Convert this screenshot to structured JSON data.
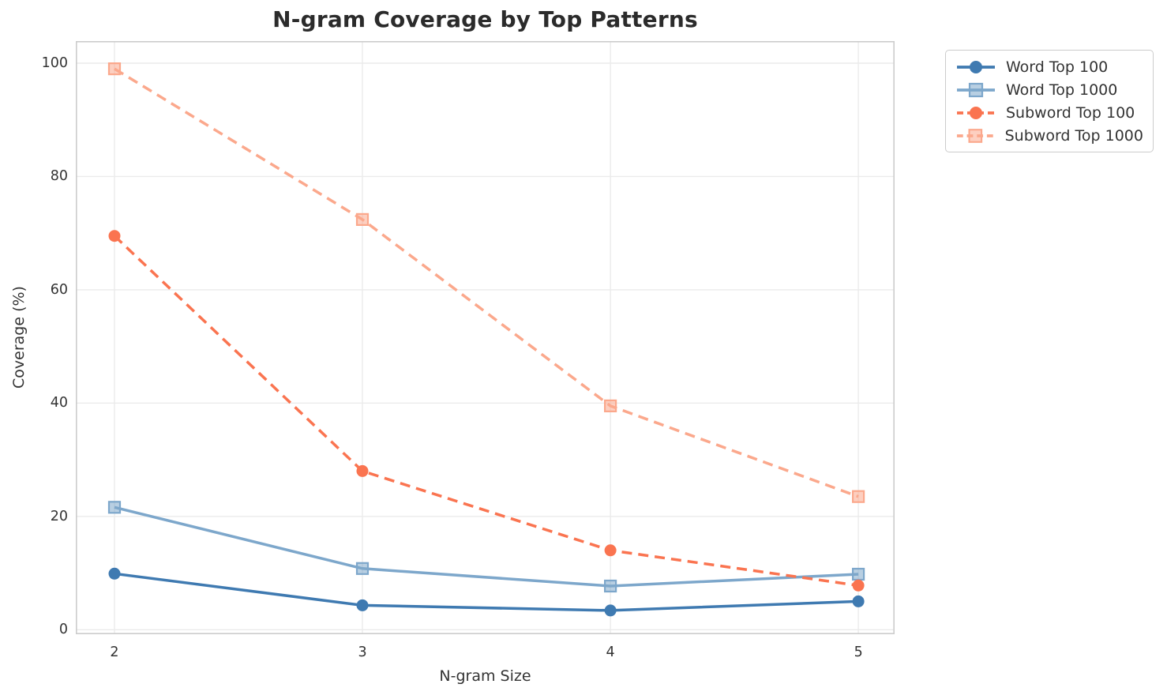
{
  "chart_data": {
    "type": "line",
    "title": "N-gram Coverage by Top Patterns",
    "xlabel": "N-gram Size",
    "ylabel": "Coverage (%)",
    "x": [
      2,
      3,
      4,
      5
    ],
    "x_ticks": [
      2,
      3,
      4,
      5
    ],
    "y_ticks": [
      0,
      20,
      40,
      60,
      80,
      100
    ],
    "xlim": [
      1.844,
      5.146
    ],
    "ylim": [
      -0.8,
      103.9
    ],
    "grid": true,
    "legend_position": "upper right, outside plot",
    "series": [
      {
        "id": "word-top-100",
        "name": "Word Top 100",
        "color": "#3f7ab1",
        "linestyle": "solid",
        "marker": "circle",
        "values": [
          9.9,
          4.3,
          3.4,
          5.0
        ]
      },
      {
        "id": "word-top-1000",
        "name": "Word Top 1000",
        "color": "#7da7cb",
        "linestyle": "solid",
        "marker": "square",
        "values": [
          21.6,
          10.8,
          7.7,
          9.8
        ]
      },
      {
        "id": "subword-top-100",
        "name": "Subword Top 100",
        "color": "#fa7450",
        "linestyle": "dashed",
        "marker": "circle",
        "values": [
          69.5,
          28.0,
          14.0,
          7.8
        ]
      },
      {
        "id": "subword-top-1000",
        "name": "Subword Top 1000",
        "color": "#fba88c",
        "linestyle": "dashed",
        "marker": "square",
        "values": [
          99.0,
          72.4,
          39.5,
          23.5
        ]
      }
    ],
    "style": {
      "background": "#ffffff",
      "grid_color": "#ebebeb",
      "spine_color": "#cccccc",
      "tick_color": "#333333",
      "title_color": "#2b2b2b"
    }
  }
}
